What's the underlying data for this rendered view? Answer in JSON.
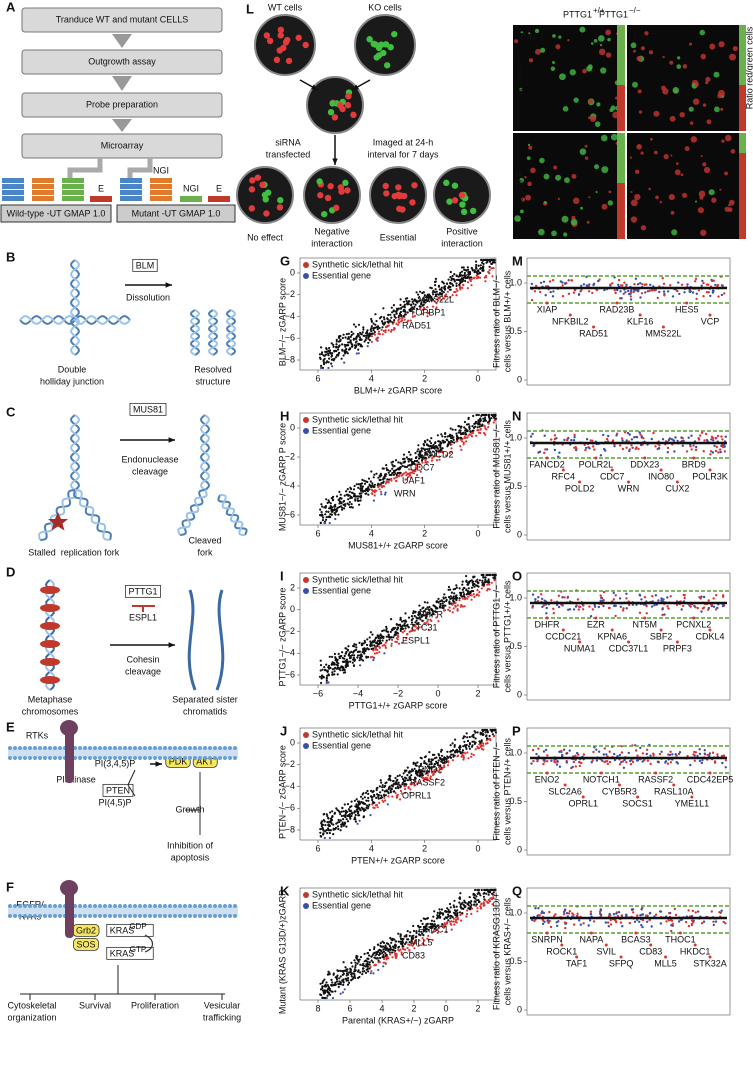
{
  "panel_a": {
    "label": "A",
    "steps": [
      "Tranduce  WT and mutant CELLS",
      "Outgrowth assay",
      "Probe preparation",
      "Microarray"
    ],
    "chips": [
      "E",
      "NGI",
      "NGI",
      "E"
    ],
    "arrays": [
      "Wild-type -UT GMAP 1.0",
      "Mutant -UT GMAP 1.0"
    ]
  },
  "panel_l": {
    "label": "L",
    "texts": [
      "WT cells",
      "KO cells",
      "siRNA",
      "transfected",
      "Imaged at 24-h",
      "interval for 7 days",
      "No effect",
      "Negative",
      "interaction",
      "Essential",
      "Positive",
      "interaction",
      "PTTG1",
      "+/+",
      "PTTG1",
      "−/−",
      "Day 2",
      "Day 7",
      "sicontrol",
      "siDHFR",
      "Ratio red/green cells"
    ]
  },
  "panels_left": [
    {
      "label": "B",
      "texts": [
        "BLM",
        "Dissolution",
        "Double",
        "holliday junction",
        "Resolved",
        "structure"
      ]
    },
    {
      "label": "C",
      "texts": [
        "MUS81",
        "Endonuclease",
        "cleavage",
        "Stalled",
        "replication fork",
        "Cleaved",
        "fork"
      ]
    },
    {
      "label": "D",
      "texts": [
        "PTTG1",
        "ESPL1",
        "Cohesin",
        "cleavage",
        "Metaphase",
        "chromosomes",
        "Separated sister",
        "chromatids"
      ]
    },
    {
      "label": "E",
      "texts": [
        "RTKs",
        "PI(3,4,5)P",
        "PI3kinase",
        "PTEN",
        "PDK",
        "AKT",
        "PI(4,5)P",
        "Growth",
        "Inhibition of",
        "apoptosis"
      ]
    },
    {
      "label": "F",
      "texts": [
        "EGFR/",
        "RTKs",
        "Grb2",
        "SOS",
        "KRAS",
        "GDP",
        "KRAS",
        "GTP",
        "Cytoskeletal",
        "organization",
        "Survival",
        "Proliferation",
        "Vesicular",
        "trafficking"
      ]
    }
  ],
  "scatter_panels": [
    {
      "label": "G",
      "legend": [
        "Synthetic sick/lethal hit",
        "Essential gene"
      ],
      "x_label": "BLM+/+ zGARP score",
      "y_label": "BLM−/− zGARP score",
      "x_ticks": [
        "6",
        "4",
        "2",
        "0"
      ],
      "y_ticks": [
        "0",
        "−2",
        "−4",
        "−6",
        "−8"
      ],
      "genes": [
        "MMS22L",
        "TOPBP1",
        "RAD51"
      ]
    },
    {
      "label": "H",
      "legend": [
        "Synthetic sick/lethal hit",
        "Essential gene"
      ],
      "x_label": "MUS81+/+ zGARP score",
      "y_label": "MUS81−/− zGARP P score",
      "x_ticks": [
        "6",
        "4",
        "2",
        "0"
      ],
      "y_ticks": [
        "0",
        "−2",
        "−4",
        "−6"
      ],
      "genes": [
        "FANCD2",
        "CDC7",
        "UAF1",
        "WRN"
      ]
    },
    {
      "label": "I",
      "legend": [
        "Synthetic sick/lethal hit",
        "Essential gene"
      ],
      "x_label": "PTTG1+/+ zGARP score",
      "y_label": "PTTG1−/− zGARP score",
      "x_ticks": [
        "−6",
        "−4",
        "−2",
        "0",
        "2"
      ],
      "y_ticks": [
        "2",
        "0",
        "−2",
        "−4",
        "−6"
      ],
      "genes": [
        "DHFR",
        "TTC31",
        "ESPL1"
      ]
    },
    {
      "label": "J",
      "legend": [
        "Synthetic sick/lethal hit",
        "Essential gene"
      ],
      "x_label": "PTEN+/+ zGARP score",
      "y_label": "PTEN−/− zGARP score",
      "x_ticks": [
        "6",
        "4",
        "2",
        "0"
      ],
      "y_ticks": [
        "0",
        "−2",
        "−4",
        "−6",
        "−8"
      ],
      "genes": [
        "ENO2",
        "RASSF2",
        "OPRL1"
      ]
    },
    {
      "label": "K",
      "legend": [
        "Synthetic sick/lethal hit",
        "Essential gene"
      ],
      "x_label": "Parental (KRAS+/−) zGARP",
      "y_label": "Mutant (KRAS G13D/+)zGARP",
      "x_ticks": [
        "8",
        "6",
        "4",
        "2",
        "0",
        "2"
      ],
      "y_ticks": [],
      "genes": [
        "HKDC1",
        "MLL5",
        "CD83"
      ]
    }
  ],
  "ratio_panels": [
    {
      "label": "M",
      "y_label": [
        "Fitness ratio of BLM−/−",
        "cells versus BLM+/+ cells"
      ],
      "y_ticks": [
        "1.0",
        "0.5",
        "0"
      ],
      "genes": [
        "XIAP",
        "NFKBIL2",
        "RAD51",
        "RAD23B",
        "KLF16",
        "MMS22L",
        "HES5",
        "VCP"
      ]
    },
    {
      "label": "N",
      "y_label": [
        "Fitness ratio of MUS81−/−",
        "cells versus MUS81+/+ cells"
      ],
      "y_ticks": [
        "1.0",
        "0.5",
        "0"
      ],
      "genes": [
        "FANCD2",
        "RFC4",
        "POLD2",
        "POLR2L",
        "CDC7",
        "WRN",
        "DDX23",
        "INO80",
        "CUX2",
        "BRD9",
        "POLR3K"
      ]
    },
    {
      "label": "O",
      "y_label": [
        "Fitness ratio  of PTTG1−/−",
        "cells versus PTTG1+/+ cells"
      ],
      "y_ticks": [
        "1.0",
        "0.5",
        "0"
      ],
      "genes": [
        "DHFR",
        "CCDC21",
        "NUMA1",
        "EZR",
        "KPNA6",
        "CDC37L1",
        "NT5M",
        "SBF2",
        "PRPF3",
        "PCNXL2",
        "CDKL4"
      ]
    },
    {
      "label": "P",
      "y_label": [
        "Fitness ratio of PTEN−/−",
        "cells versus PTEN+/+ cells"
      ],
      "y_ticks": [
        "1.0",
        "0.5",
        "0"
      ],
      "genes": [
        "ENO2",
        "SLC2A6",
        "OPRL1",
        "NOTCH1",
        "CYB5R3",
        "SOCS1",
        "RASSF2",
        "RASL10A",
        "YME1L1",
        "CDC42EP5"
      ]
    },
    {
      "label": "Q",
      "y_label": [
        "Fitness ratio  of KRASG13D/+",
        "cells versus KRAS+/− cells"
      ],
      "y_ticks": [
        "1.0",
        "0.5",
        "0"
      ],
      "genes": [
        "SNRPN",
        "ROCK1",
        "TAF1",
        "NAPA",
        "SVIL",
        "SFPQ",
        "BCAS3",
        "CD83",
        "MLL5",
        "THOC1",
        "HKDC1",
        "STK32A"
      ]
    }
  ]
}
